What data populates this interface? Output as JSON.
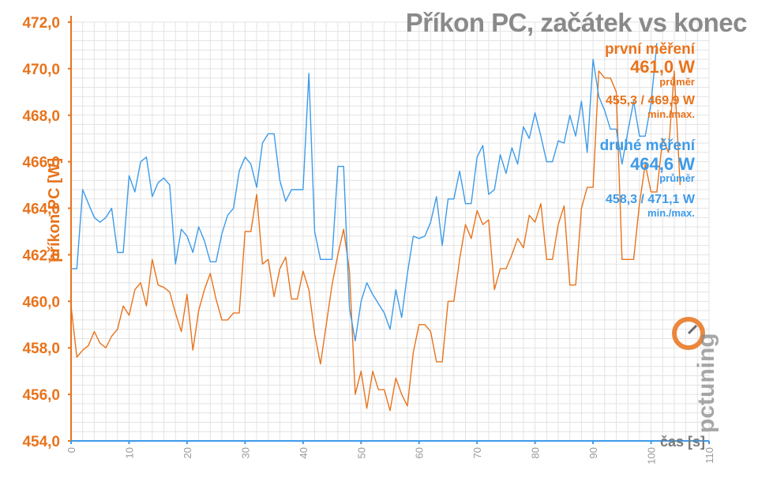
{
  "chart_data": {
    "type": "line",
    "title": "Příkon PC, začátek vs konec",
    "ylabel": "příkon PC [W]",
    "xlabel": "čas [s]",
    "xlim": [
      0,
      110
    ],
    "ylim": [
      454,
      472
    ],
    "x_ticks": [
      "0",
      "10",
      "20",
      "30",
      "40",
      "50",
      "60",
      "70",
      "80",
      "90",
      "100",
      "110"
    ],
    "y_ticks": [
      "454,0",
      "456,0",
      "458,0",
      "460,0",
      "462,0",
      "464,0",
      "466,0",
      "468,0",
      "470,0",
      "472,0"
    ],
    "grid": true,
    "series": [
      {
        "name": "první měření",
        "color": "#e8731c",
        "avg_label": "461,0 W",
        "avg_sub": "průměr",
        "range_label": "455,3 / 469,9 W",
        "range_sub": "min./max.",
        "values": [
          459.8,
          457.6,
          457.9,
          458.1,
          458.7,
          458.2,
          458.0,
          458.5,
          458.8,
          459.8,
          459.4,
          460.5,
          460.8,
          459.8,
          461.8,
          460.7,
          460.6,
          460.4,
          459.5,
          458.7,
          460.3,
          457.9,
          459.6,
          460.5,
          461.2,
          460.1,
          459.2,
          459.2,
          459.5,
          459.5,
          463.0,
          463.0,
          464.6,
          461.6,
          461.8,
          460.2,
          461.4,
          461.9,
          460.1,
          460.1,
          461.3,
          460.5,
          458.6,
          457.3,
          459.0,
          460.7,
          462.0,
          463.1,
          461.3,
          456.0,
          457.0,
          455.4,
          457.0,
          456.2,
          456.2,
          455.3,
          456.7,
          456.0,
          455.5,
          457.8,
          459.0,
          459.0,
          458.7,
          457.4,
          457.4,
          460.0,
          460.0,
          461.8,
          463.3,
          462.7,
          463.9,
          463.3,
          463.5,
          460.5,
          461.4,
          461.4,
          462.0,
          462.7,
          462.3,
          463.7,
          463.4,
          464.2,
          461.8,
          461.8,
          463.3,
          464.1,
          460.7,
          460.7,
          464.0,
          464.9,
          464.9,
          469.9,
          469.6,
          469.6,
          469.0,
          461.8,
          461.8,
          461.8,
          464.2,
          465.9,
          464.7,
          464.7,
          467.0,
          466.4,
          469.9,
          465.0
        ]
      },
      {
        "name": "druhé měření",
        "color": "#3d9be9",
        "avg_label": "464,6 W",
        "avg_sub": "průměr",
        "range_label": "458,3 / 471,1 W",
        "range_sub": "min./max.",
        "values": [
          461.4,
          461.4,
          464.8,
          464.2,
          463.6,
          463.4,
          463.6,
          464.0,
          462.1,
          462.1,
          465.4,
          464.7,
          466.0,
          466.2,
          464.5,
          465.1,
          465.3,
          465.0,
          461.6,
          463.1,
          462.8,
          462.1,
          463.2,
          462.6,
          461.7,
          461.7,
          462.9,
          463.7,
          464.0,
          465.6,
          466.2,
          465.9,
          464.9,
          466.8,
          467.2,
          467.2,
          465.2,
          464.3,
          464.8,
          464.8,
          464.8,
          469.8,
          463.0,
          461.8,
          461.8,
          461.8,
          465.8,
          465.8,
          459.7,
          458.3,
          460.0,
          460.8,
          460.3,
          459.9,
          459.5,
          458.8,
          460.5,
          459.3,
          461.2,
          462.8,
          462.7,
          462.8,
          463.4,
          464.5,
          462.4,
          464.4,
          464.4,
          465.6,
          464.2,
          464.2,
          466.2,
          466.7,
          464.6,
          464.8,
          466.3,
          465.5,
          466.6,
          465.9,
          467.5,
          467.0,
          468.1,
          467.1,
          466.0,
          466.0,
          466.9,
          466.8,
          468.0,
          467.1,
          468.6,
          466.4,
          470.4,
          468.8,
          468.2,
          467.4,
          467.4,
          465.9,
          467.3,
          468.6,
          467.1,
          467.1,
          468.5,
          471.1
        ]
      }
    ]
  },
  "watermark": "pctuning"
}
